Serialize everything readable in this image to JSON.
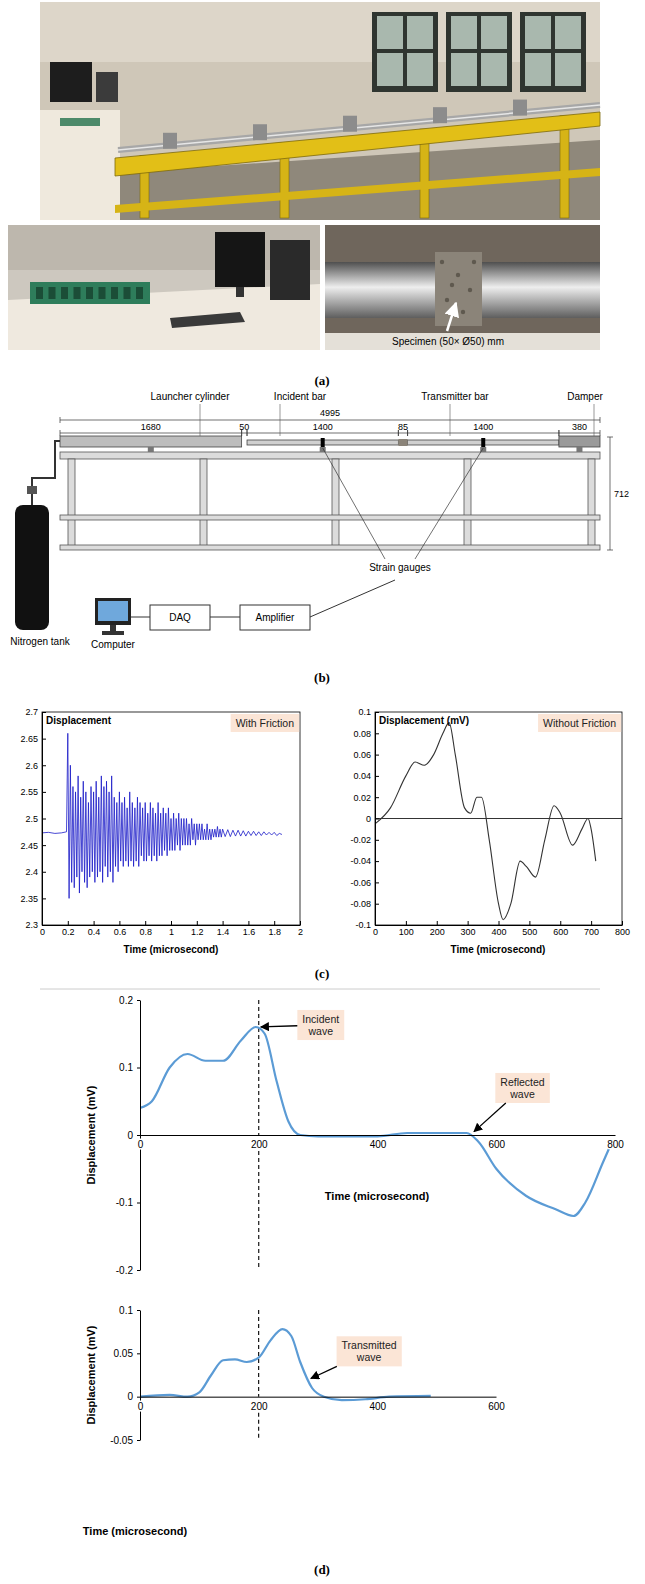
{
  "figure": {
    "panel_labels": [
      "(a)",
      "(b)",
      "(c)",
      "(d)"
    ],
    "photos": {
      "specimen_label": "Specimen (50× Ø50) mm"
    },
    "diagram": {
      "labels": {
        "launcher": "Launcher cylinder",
        "incident": "Incident bar",
        "transmitter": "Transmitter bar",
        "damper": "Damper",
        "tank": "Nitrogen tank",
        "gauges": "Strain gauges",
        "computer": "Computer",
        "daq": "DAQ",
        "amplifier": "Amplifier"
      },
      "total_length": 4995,
      "segments": [
        1680,
        50,
        1400,
        85,
        1400,
        380
      ],
      "height": 712
    }
  },
  "chart_data": [
    {
      "type": "line",
      "subtitle": "With Friction",
      "y_label": "Displacement",
      "x_label": "Time (microsecond)",
      "color": "#1a1ac8",
      "xlim": [
        0,
        2
      ],
      "ylim": [
        2.3,
        2.7
      ],
      "xticks": [
        0,
        0.2,
        0.4,
        0.6,
        0.8,
        1,
        1.2,
        1.4,
        1.6,
        1.8,
        2
      ],
      "yticks": [
        2.3,
        2.35,
        2.4,
        2.45,
        2.5,
        2.55,
        2.6,
        2.65,
        2.7
      ],
      "x": [
        0,
        0.05,
        0.1,
        0.15,
        0.19,
        0.2,
        0.21,
        0.22,
        0.23,
        0.24,
        0.25,
        0.26,
        0.27,
        0.28,
        0.29,
        0.3,
        0.31,
        0.32,
        0.33,
        0.34,
        0.35,
        0.36,
        0.37,
        0.38,
        0.39,
        0.4,
        0.41,
        0.42,
        0.43,
        0.44,
        0.45,
        0.46,
        0.47,
        0.48,
        0.49,
        0.5,
        0.51,
        0.52,
        0.53,
        0.54,
        0.55,
        0.56,
        0.57,
        0.58,
        0.59,
        0.6,
        0.61,
        0.62,
        0.63,
        0.64,
        0.65,
        0.66,
        0.67,
        0.68,
        0.69,
        0.7,
        0.71,
        0.72,
        0.73,
        0.74,
        0.75,
        0.76,
        0.77,
        0.78,
        0.79,
        0.8,
        0.81,
        0.82,
        0.83,
        0.84,
        0.85,
        0.86,
        0.87,
        0.88,
        0.89,
        0.9,
        0.91,
        0.92,
        0.93,
        0.94,
        0.95,
        0.96,
        0.97,
        0.98,
        0.99,
        1,
        1.01,
        1.02,
        1.03,
        1.04,
        1.05,
        1.06,
        1.07,
        1.08,
        1.09,
        1.1,
        1.11,
        1.12,
        1.13,
        1.14,
        1.15,
        1.16,
        1.17,
        1.18,
        1.19,
        1.2,
        1.21,
        1.22,
        1.23,
        1.24,
        1.25,
        1.26,
        1.27,
        1.28,
        1.29,
        1.3,
        1.31,
        1.32,
        1.33,
        1.34,
        1.35,
        1.36,
        1.37,
        1.38,
        1.39,
        1.4,
        1.42,
        1.44,
        1.46,
        1.48,
        1.5,
        1.52,
        1.54,
        1.56,
        1.58,
        1.6,
        1.62,
        1.64,
        1.66,
        1.68,
        1.7,
        1.72,
        1.74,
        1.76,
        1.78,
        1.8,
        1.82,
        1.84,
        1.86
      ],
      "values": [
        2.473,
        2.474,
        2.472,
        2.473,
        2.475,
        2.66,
        2.35,
        2.6,
        2.38,
        2.56,
        2.37,
        2.55,
        2.39,
        2.58,
        2.36,
        2.54,
        2.4,
        2.57,
        2.38,
        2.55,
        2.37,
        2.53,
        2.39,
        2.56,
        2.4,
        2.55,
        2.38,
        2.57,
        2.39,
        2.54,
        2.4,
        2.58,
        2.38,
        2.56,
        2.41,
        2.57,
        2.39,
        2.55,
        2.4,
        2.58,
        2.38,
        2.54,
        2.41,
        2.53,
        2.4,
        2.55,
        2.42,
        2.53,
        2.41,
        2.54,
        2.42,
        2.52,
        2.41,
        2.55,
        2.42,
        2.53,
        2.41,
        2.52,
        2.42,
        2.54,
        2.41,
        2.53,
        2.43,
        2.52,
        2.42,
        2.53,
        2.42,
        2.51,
        2.43,
        2.53,
        2.42,
        2.52,
        2.43,
        2.51,
        2.42,
        2.53,
        2.43,
        2.51,
        2.43,
        2.52,
        2.44,
        2.51,
        2.43,
        2.52,
        2.44,
        2.5,
        2.44,
        2.51,
        2.44,
        2.5,
        2.45,
        2.51,
        2.44,
        2.5,
        2.45,
        2.5,
        2.45,
        2.5,
        2.45,
        2.49,
        2.45,
        2.5,
        2.46,
        2.49,
        2.45,
        2.49,
        2.46,
        2.49,
        2.46,
        2.49,
        2.46,
        2.48,
        2.46,
        2.49,
        2.46,
        2.48,
        2.46,
        2.48,
        2.465,
        2.48,
        2.465,
        2.485,
        2.465,
        2.48,
        2.465,
        2.48,
        2.466,
        2.479,
        2.466,
        2.478,
        2.467,
        2.478,
        2.467,
        2.477,
        2.467,
        2.476,
        2.468,
        2.476,
        2.468,
        2.475,
        2.468,
        2.475,
        2.469,
        2.474,
        2.469,
        2.474,
        2.468,
        2.472,
        2.47
      ]
    },
    {
      "type": "line",
      "subtitle": "Without Friction",
      "y_label": "Displacement (mV)",
      "x_label": "Time (microsecond)",
      "color": "#333333",
      "xlim": [
        0,
        800
      ],
      "ylim": [
        -0.1,
        0.1
      ],
      "xticks": [
        0,
        100,
        200,
        300,
        400,
        500,
        600,
        700,
        800
      ],
      "yticks": [
        -0.1,
        -0.08,
        -0.06,
        -0.04,
        -0.02,
        0,
        0.02,
        0.04,
        0.06,
        0.08,
        0.1
      ],
      "x": [
        0,
        50,
        100,
        130,
        160,
        190,
        220,
        240,
        260,
        290,
        310,
        330,
        345,
        370,
        400,
        415,
        440,
        470,
        490,
        520,
        550,
        580,
        600,
        640,
        670,
        690,
        700,
        715
      ],
      "values": [
        -0.005,
        0.01,
        0.04,
        0.053,
        0.05,
        0.06,
        0.08,
        0.09,
        0.06,
        0.01,
        0.005,
        0.02,
        0.02,
        -0.02,
        -0.08,
        -0.095,
        -0.08,
        -0.04,
        -0.045,
        -0.055,
        -0.02,
        0.012,
        0.005,
        -0.025,
        -0.01,
        0,
        -0.01,
        -0.04
      ]
    },
    {
      "type": "line",
      "y_label": "Displacement (mV)",
      "x_label": "Time (microsecond)",
      "color": "#5b9bd5",
      "xlim": [
        0,
        800
      ],
      "ylim": [
        -0.2,
        0.2
      ],
      "xticks": [
        0,
        200,
        400,
        600,
        800
      ],
      "yticks": [
        -0.2,
        -0.1,
        0,
        0.1,
        0.2
      ],
      "vline": 200,
      "annotations": [
        {
          "text": "Incident wave",
          "x": 200,
          "y": 0.16
        },
        {
          "text": "Reflected wave",
          "x": 560,
          "y": 0.003
        }
      ],
      "x": [
        0,
        20,
        50,
        80,
        110,
        140,
        170,
        195,
        210,
        230,
        250,
        270,
        300,
        400,
        450,
        550,
        570,
        600,
        650,
        700,
        730,
        750,
        780,
        795
      ],
      "values": [
        0.04,
        0.05,
        0.1,
        0.12,
        0.11,
        0.11,
        0.14,
        0.16,
        0.15,
        0.08,
        0.02,
        0,
        -0.002,
        -0.002,
        0.003,
        0.003,
        -0.01,
        -0.05,
        -0.09,
        -0.11,
        -0.12,
        -0.1,
        -0.04,
        -0.01
      ]
    },
    {
      "type": "line",
      "y_label": "Displacement (mV)",
      "x_label": "Time (microsecond)",
      "color": "#5b9bd5",
      "xlim": [
        0,
        600
      ],
      "ylim": [
        -0.05,
        0.1
      ],
      "xticks": [
        0,
        200,
        400,
        600
      ],
      "yticks": [
        -0.05,
        0,
        0.05,
        0.1
      ],
      "vline": 200,
      "annotations": [
        {
          "text": "Transmitted wave",
          "x": 285,
          "y": 0.02
        }
      ],
      "x": [
        0,
        50,
        80,
        100,
        120,
        140,
        160,
        180,
        200,
        220,
        240,
        255,
        270,
        290,
        310,
        340,
        380,
        420,
        490
      ],
      "values": [
        0,
        0.002,
        0,
        0.005,
        0.025,
        0.042,
        0.043,
        0.04,
        0.045,
        0.065,
        0.078,
        0.07,
        0.04,
        0.01,
        0,
        -0.004,
        -0.003,
        0,
        0.001
      ]
    }
  ]
}
